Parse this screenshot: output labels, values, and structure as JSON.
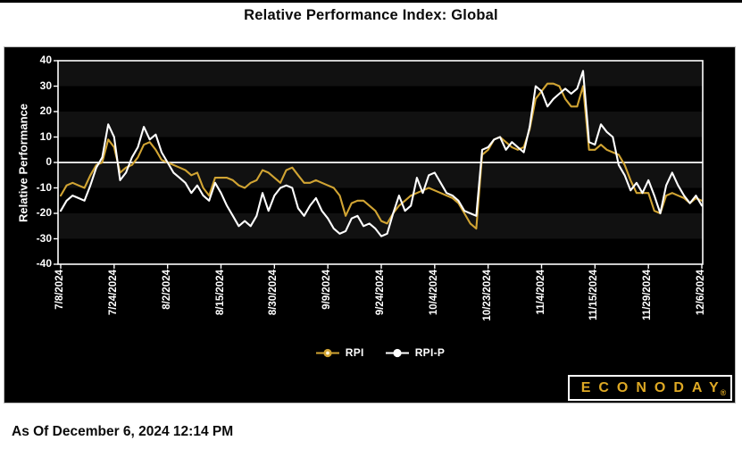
{
  "title": "Relative Performance Index: Global",
  "footer": {
    "as_of": "As Of December 6, 2024 12:14 PM"
  },
  "logo": {
    "text": "ECONODAY",
    "registered": "®",
    "color": "#DFA924"
  },
  "legend": [
    {
      "name": "RPI",
      "color": "#D1A433",
      "center": "#FFF6DC"
    },
    {
      "name": "RPI-P",
      "color": "#FFFFFF",
      "center": "#FFFFFF"
    }
  ],
  "chart_data": {
    "type": "line",
    "title": "Relative Performance Index: Global",
    "xlabel": "",
    "ylabel": "Relative Performance",
    "ylim": [
      -40,
      40
    ],
    "yticks": [
      40,
      30,
      20,
      10,
      0,
      -10,
      -20,
      -30,
      -40
    ],
    "grid": false,
    "legend_position": "bottom",
    "zero_line": true,
    "zero_line_color": "#FFFFFF",
    "band_colors": [
      "#111111",
      "#000000"
    ],
    "xticklabels": [
      "7/8/2024",
      "7/24/2024",
      "8/2/2024",
      "8/15/2024",
      "8/30/2024",
      "9/9/2024",
      "9/24/2024",
      "10/4/2024",
      "10/23/2024",
      "11/4/2024",
      "11/15/2024",
      "11/29/2024",
      "12/6/2024"
    ],
    "series": [
      {
        "name": "RPI",
        "color": "#D1A433",
        "values": [
          -13,
          -9,
          -8,
          -9,
          -10,
          -5,
          -1,
          0,
          9,
          6,
          -4,
          -2,
          -1,
          2,
          7,
          8,
          5,
          1,
          0,
          -1,
          -2,
          -3,
          -5,
          -4,
          -10,
          -13,
          -6,
          -6,
          -6,
          -7,
          -9,
          -10,
          -8,
          -7,
          -3,
          -4,
          -6,
          -8,
          -3,
          -2,
          -5,
          -8,
          -8,
          -7,
          -8,
          -9,
          -10,
          -13,
          -21,
          -16,
          -15,
          -15,
          -17,
          -19,
          -23,
          -24,
          -20,
          -17,
          -15,
          -13,
          -12,
          -11,
          -10,
          -11,
          -12,
          -13,
          -14,
          -16,
          -20,
          -24,
          -26,
          3,
          5,
          9,
          10,
          8,
          6,
          5,
          6,
          13,
          25,
          28,
          31,
          31,
          30,
          25,
          22,
          22,
          30,
          5,
          5,
          7,
          5,
          4,
          3,
          -1,
          -7,
          -12,
          -12,
          -12,
          -19,
          -20,
          -13,
          -12,
          -13,
          -14,
          -16,
          -14,
          -15
        ]
      },
      {
        "name": "RPI-P",
        "color": "#FFFFFF",
        "values": [
          -19,
          -15,
          -13,
          -14,
          -15,
          -9,
          -2,
          2,
          15,
          10,
          -7,
          -4,
          2,
          6,
          14,
          9,
          11,
          4,
          0,
          -4,
          -6,
          -8,
          -12,
          -9,
          -13,
          -15,
          -8,
          -12,
          -17,
          -21,
          -25,
          -23,
          -25,
          -21,
          -12,
          -19,
          -13,
          -10,
          -9,
          -10,
          -18,
          -21,
          -17,
          -14,
          -19,
          -22,
          -26,
          -28,
          -27,
          -22,
          -21,
          -25,
          -24,
          -26,
          -29,
          -28,
          -20,
          -13,
          -19,
          -17,
          -6,
          -12,
          -5,
          -4,
          -8,
          -12,
          -13,
          -15,
          -19,
          -20,
          -21,
          5,
          6,
          9,
          10,
          5,
          8,
          6,
          4,
          14,
          30,
          28,
          22,
          25,
          27,
          29,
          27,
          29,
          36,
          8,
          7,
          15,
          12,
          10,
          -1,
          -5,
          -11,
          -8,
          -12,
          -7,
          -13,
          -20,
          -9,
          -4,
          -9,
          -13,
          -16,
          -13,
          -17
        ]
      }
    ]
  }
}
